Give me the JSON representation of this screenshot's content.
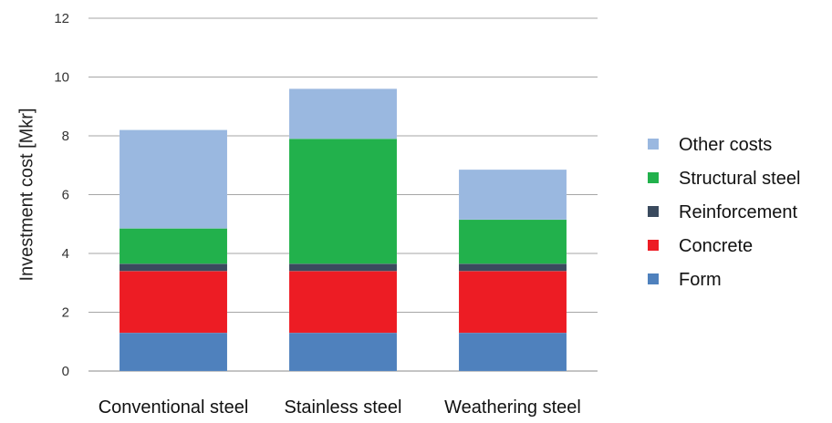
{
  "chart_data": {
    "type": "bar",
    "stacked": true,
    "categories": [
      "Conventional steel",
      "Stainless steel",
      "Weathering steel"
    ],
    "series": [
      {
        "name": "Form",
        "values": [
          1.3,
          1.3,
          1.3
        ],
        "color": "#4f81bd"
      },
      {
        "name": "Concrete",
        "values": [
          2.1,
          2.1,
          2.1
        ],
        "color": "#ed1c24"
      },
      {
        "name": "Reinforcement",
        "values": [
          0.25,
          0.25,
          0.25
        ],
        "color": "#3a4a5e"
      },
      {
        "name": "Structural steel",
        "values": [
          1.2,
          4.25,
          1.5
        ],
        "color": "#22b14c"
      },
      {
        "name": "Other costs",
        "values": [
          3.35,
          1.7,
          1.7
        ],
        "color": "#9ab8e0"
      }
    ],
    "title": "",
    "xlabel": "",
    "ylabel": "Investment cost [Mkr]",
    "ylim": [
      0,
      12
    ],
    "yticks": [
      "0",
      "2",
      "4",
      "6",
      "8",
      "10",
      "12"
    ],
    "grid": true,
    "legend_position": "right",
    "legend_order": [
      "Other costs",
      "Structural steel",
      "Reinforcement",
      "Concrete",
      "Form"
    ]
  }
}
